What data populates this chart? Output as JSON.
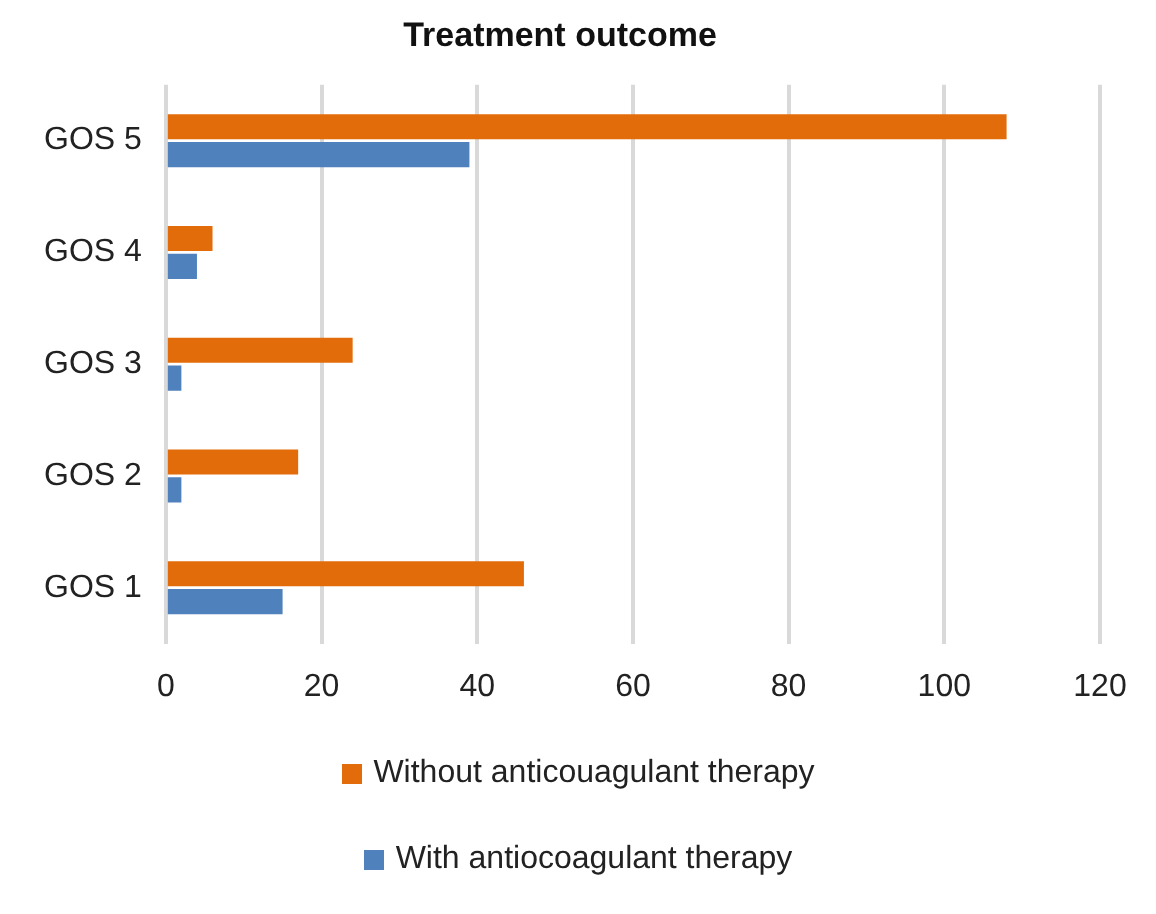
{
  "chart_data": {
    "type": "bar",
    "title": "Treatment outcome",
    "orientation": "horizontal",
    "categories": [
      "GOS 5",
      "GOS 4",
      "GOS 3",
      "GOS 2",
      "GOS 1"
    ],
    "series": [
      {
        "name": "Without anticouagulant therapy",
        "color": "#e36c0a",
        "values": [
          108,
          6,
          24,
          17,
          46
        ]
      },
      {
        "name": "With antiocoagulant therapy",
        "color": "#4f81bd",
        "values": [
          39,
          4,
          2,
          2,
          15
        ]
      }
    ],
    "xlim": [
      0,
      120
    ],
    "xticks": [
      0,
      20,
      40,
      60,
      80,
      100,
      120
    ],
    "grid": "x",
    "legend": "bottom"
  }
}
